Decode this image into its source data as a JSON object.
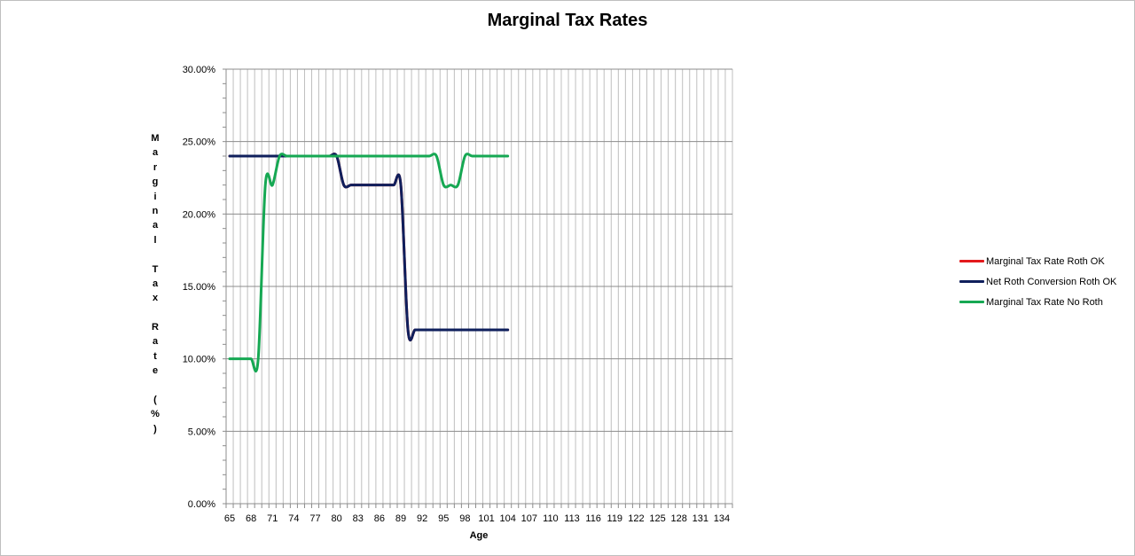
{
  "chart": {
    "title": "Marginal Tax Rates",
    "ylabel_chars": [
      "M",
      "a",
      "r",
      "g",
      "i",
      "n",
      "a",
      "l",
      " ",
      "T",
      "a",
      "x",
      " ",
      "R",
      "a",
      "t",
      "e",
      " ",
      "(",
      "%",
      ")"
    ],
    "xlabel": "Age"
  },
  "legend": [
    {
      "label": "Marginal Tax Rate Roth OK",
      "color": "#e31a1c"
    },
    {
      "label": "Net Roth Conversion Roth OK",
      "color": "#0f1f5c"
    },
    {
      "label": "Marginal Tax Rate No Roth",
      "color": "#16a853"
    }
  ],
  "chart_data": {
    "type": "line",
    "title": "Marginal Tax Rates",
    "xlabel": "Age",
    "ylabel": "Marginal Tax Rate (%)",
    "ylim": [
      0,
      0.3
    ],
    "yticks": [
      "0.00%",
      "5.00%",
      "10.00%",
      "15.00%",
      "20.00%",
      "25.00%",
      "30.00%"
    ],
    "xlim": [
      65,
      135
    ],
    "xtick_labels": [
      "65",
      "68",
      "71",
      "74",
      "77",
      "80",
      "83",
      "86",
      "89",
      "92",
      "95",
      "98",
      "101",
      "104",
      "107",
      "110",
      "113",
      "116",
      "119",
      "122",
      "125",
      "128",
      "131",
      "134"
    ],
    "grid": true,
    "legend_position": "right",
    "x": [
      65,
      66,
      67,
      68,
      69,
      70,
      71,
      72,
      73,
      74,
      75,
      76,
      77,
      78,
      79,
      80,
      81,
      82,
      83,
      84,
      85,
      86,
      87,
      88,
      89,
      90,
      91,
      92,
      93,
      94,
      95,
      96,
      97,
      98,
      99,
      100,
      101,
      102,
      103,
      104
    ],
    "series": [
      {
        "name": "Marginal Tax Rate Roth OK",
        "color": "#e31a1c",
        "values": [
          0.24,
          0.24,
          0.24,
          0.24,
          0.24,
          0.24,
          0.24,
          0.24,
          0.24,
          0.24,
          0.24,
          0.24,
          0.24,
          0.24,
          0.24,
          0.24,
          0.22,
          0.22,
          0.22,
          0.22,
          0.22,
          0.22,
          0.22,
          0.22,
          0.22,
          0.12,
          0.12,
          0.12,
          0.12,
          0.12,
          0.12,
          0.12,
          0.12,
          0.12,
          0.12,
          0.12,
          0.12,
          0.12,
          0.12,
          0.12
        ]
      },
      {
        "name": "Net Roth Conversion Roth OK",
        "color": "#0f1f5c",
        "values": [
          0.24,
          0.24,
          0.24,
          0.24,
          0.24,
          0.24,
          0.24,
          0.24,
          0.24,
          0.24,
          0.24,
          0.24,
          0.24,
          0.24,
          0.24,
          0.24,
          0.22,
          0.22,
          0.22,
          0.22,
          0.22,
          0.22,
          0.22,
          0.22,
          0.22,
          0.12,
          0.12,
          0.12,
          0.12,
          0.12,
          0.12,
          0.12,
          0.12,
          0.12,
          0.12,
          0.12,
          0.12,
          0.12,
          0.12,
          0.12
        ]
      },
      {
        "name": "Marginal Tax Rate No Roth",
        "color": "#16a853",
        "values": [
          0.1,
          0.1,
          0.1,
          0.1,
          0.1,
          0.22,
          0.22,
          0.24,
          0.24,
          0.24,
          0.24,
          0.24,
          0.24,
          0.24,
          0.24,
          0.24,
          0.24,
          0.24,
          0.24,
          0.24,
          0.24,
          0.24,
          0.24,
          0.24,
          0.24,
          0.24,
          0.24,
          0.24,
          0.24,
          0.24,
          0.22,
          0.22,
          0.22,
          0.24,
          0.24,
          0.24,
          0.24,
          0.24,
          0.24,
          0.24
        ]
      }
    ]
  }
}
